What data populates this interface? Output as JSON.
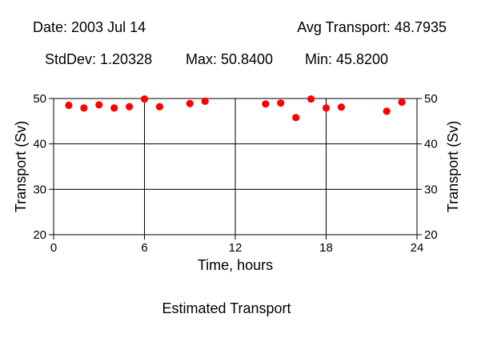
{
  "header": {
    "date": "Date: 2003 Jul 14",
    "avg": "Avg Transport: 48.7935",
    "stddev": "StdDev: 1.20328",
    "max": "Max: 50.8400",
    "min": "Min: 45.8200"
  },
  "chart_data": {
    "type": "scatter",
    "title": "Estimated Transport",
    "xlabel": "Time, hours",
    "ylabel": "Transport (Sv)",
    "xlim": [
      0,
      24
    ],
    "ylim": [
      20,
      50
    ],
    "xticks": [
      0,
      6,
      12,
      18,
      24
    ],
    "yticks": [
      20,
      30,
      40,
      50
    ],
    "grid": true,
    "color": "#ff0000",
    "x": [
      1,
      2,
      3,
      4,
      5,
      6,
      7,
      9,
      10,
      14,
      15,
      16,
      17,
      18,
      19,
      22,
      23
    ],
    "y": [
      48.5,
      47.9,
      48.6,
      47.9,
      48.2,
      49.9,
      48.2,
      48.9,
      49.4,
      48.8,
      49.0,
      45.8,
      49.9,
      47.9,
      48.1,
      47.2,
      49.2
    ]
  }
}
